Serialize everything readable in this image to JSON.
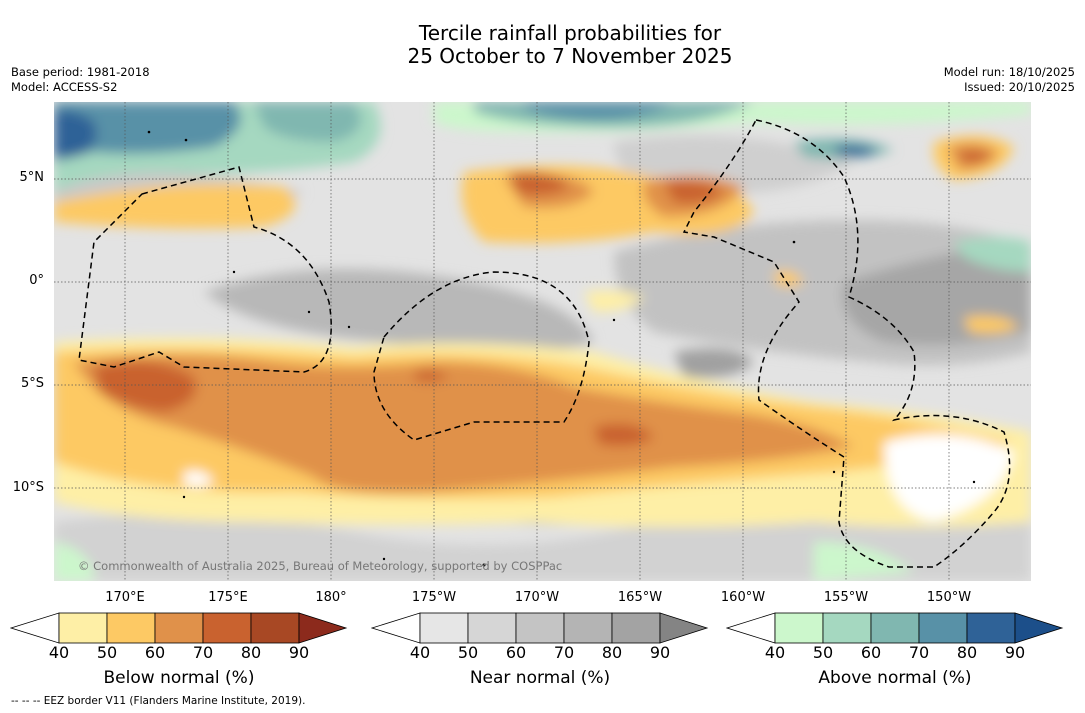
{
  "title": {
    "line1": "Tercile rainfall probabilities for",
    "line2": "25 October to 7 November 2025"
  },
  "info": {
    "base_period": "Base period: 1981-2018",
    "model": "Model: ACCESS-S2",
    "model_run": "Model run: 18/10/2025",
    "issued": "Issued: 20/10/2025"
  },
  "map": {
    "lat_labels": [
      "5°N",
      "0°",
      "5°S",
      "10°S"
    ],
    "lon_labels": [
      "170°E",
      "175°E",
      "180°",
      "175°W",
      "170°W",
      "165°W",
      "160°W",
      "155°W",
      "150°W"
    ],
    "credit": "© Commonwealth of Australia 2025, Bureau of Meteorology, supported by COSPPac",
    "footnote": "--  --  -- EEZ border V11 (Flanders Marine Institute, 2019)."
  },
  "colorbars": [
    {
      "label": "Below normal (%)",
      "ticks": [
        "40",
        "50",
        "60",
        "70",
        "80",
        "90"
      ],
      "colors": [
        "#ffffff",
        "#feefa6",
        "#fdc964",
        "#e0914a",
        "#c9622f",
        "#a84824",
        "#8c2a1c"
      ]
    },
    {
      "label": "Near normal (%)",
      "ticks": [
        "40",
        "50",
        "60",
        "70",
        "80",
        "90"
      ],
      "colors": [
        "#ffffff",
        "#e6e6e6",
        "#d6d6d6",
        "#c4c4c4",
        "#b4b4b4",
        "#a3a3a3",
        "#848484"
      ]
    },
    {
      "label": "Above normal (%)",
      "ticks": [
        "40",
        "50",
        "60",
        "70",
        "80",
        "90"
      ],
      "colors": [
        "#ffffff",
        "#ccf7cc",
        "#a5d8c0",
        "#80b7b0",
        "#5891a7",
        "#2f6297",
        "#1c4f8a"
      ]
    }
  ]
}
